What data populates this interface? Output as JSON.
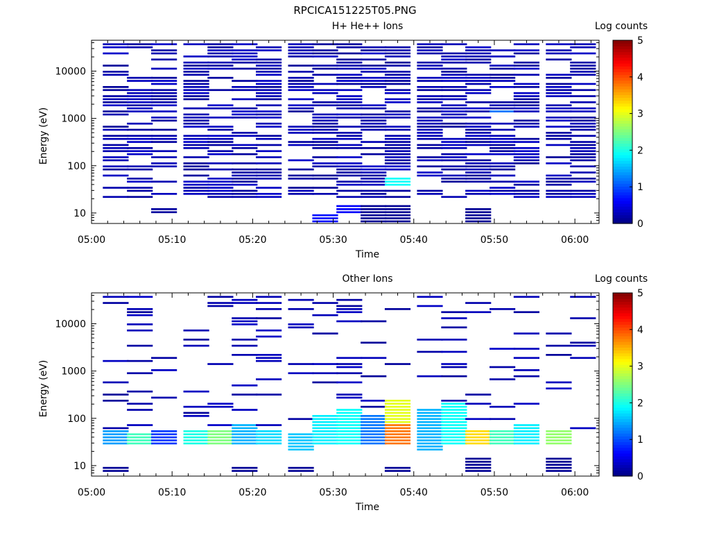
{
  "title": "RPCICA151225T05.PNG",
  "colors": {
    "frame": "#000000",
    "background": "#ffffff"
  },
  "colorscale": {
    "name": "jet",
    "min": 0,
    "max": 5,
    "ticks": [
      "0",
      "1",
      "2",
      "3",
      "4",
      "5"
    ],
    "label": "Log counts"
  },
  "chart_data": [
    {
      "type": "heatmap",
      "title": "H+ He++ Ions",
      "xlabel": "Time",
      "ylabel": "Energy (eV)",
      "yscale": "log",
      "ylim": [
        6,
        45000
      ],
      "xlim": [
        "05:00",
        "06:03"
      ],
      "x_ticks": [
        "05:00",
        "05:10",
        "05:20",
        "05:30",
        "05:40",
        "05:50",
        "06:00"
      ],
      "y_ticks": [
        "10",
        "100",
        "1000",
        "10000"
      ],
      "colorbar_label": "Log counts",
      "time_bins": [
        "05:03",
        "05:06",
        "05:09",
        "05:13",
        "05:16",
        "05:19",
        "05:22",
        "05:26",
        "05:29",
        "05:32",
        "05:35",
        "05:38",
        "05:42",
        "05:45",
        "05:48",
        "05:51",
        "05:54",
        "05:58",
        "06:01"
      ],
      "noise_level": 0.12,
      "noise_fill_probability": 0.6,
      "noise_energy_range": [
        20,
        40000
      ],
      "features": [
        {
          "time": "05:09",
          "energy_range": [
            9,
            12
          ],
          "value": 0.15
        },
        {
          "time": "05:16",
          "energy_range": [
            25,
            55
          ],
          "value": 0.35
        },
        {
          "time": "05:35",
          "energy_range": [
            6,
            14
          ],
          "value": 0.1
        },
        {
          "time": "05:38",
          "energy_range": [
            6,
            14
          ],
          "value": 0.1
        },
        {
          "time": "05:39",
          "energy_range": [
            38,
            60
          ],
          "value": 1.9
        },
        {
          "time": "05:48",
          "energy_range": [
            6,
            13
          ],
          "value": 0.1
        },
        {
          "time": "05:51",
          "energy_range": [
            1200,
            1400
          ],
          "value": 1.2
        },
        {
          "time": "05:32",
          "energy_range": [
            10,
            14
          ],
          "value": 0.6
        },
        {
          "time": "05:29",
          "energy_range": [
            6,
            9
          ],
          "value": 0.7
        }
      ]
    },
    {
      "type": "heatmap",
      "title": "Other Ions",
      "xlabel": "Time",
      "ylabel": "Energy (eV)",
      "yscale": "log",
      "ylim": [
        6,
        45000
      ],
      "xlim": [
        "05:00",
        "06:03"
      ],
      "x_ticks": [
        "05:00",
        "05:10",
        "05:20",
        "05:30",
        "05:40",
        "05:50",
        "06:00"
      ],
      "y_ticks": [
        "10",
        "100",
        "1000",
        "10000"
      ],
      "colorbar_label": "Log counts",
      "time_bins": [
        "05:03",
        "05:06",
        "05:09",
        "05:13",
        "05:16",
        "05:19",
        "05:22",
        "05:26",
        "05:29",
        "05:32",
        "05:35",
        "05:38",
        "05:42",
        "05:45",
        "05:48",
        "05:51",
        "05:54",
        "05:58",
        "06:01"
      ],
      "noise_level": 0.12,
      "noise_fill_probability": 0.18,
      "noise_energy_range": [
        60,
        40000
      ],
      "features": [
        {
          "time": "05:03",
          "energy_range": [
            25,
            60
          ],
          "value": 1.4
        },
        {
          "time": "05:06",
          "energy_range": [
            28,
            45
          ],
          "value": 2.2
        },
        {
          "time": "05:09",
          "energy_range": [
            25,
            60
          ],
          "value": 0.9
        },
        {
          "time": "05:13",
          "energy_range": [
            25,
            60
          ],
          "value": 2.0
        },
        {
          "time": "05:16",
          "energy_range": [
            28,
            55
          ],
          "value": 2.5
        },
        {
          "time": "05:19",
          "energy_range": [
            25,
            70
          ],
          "value": 1.5
        },
        {
          "time": "05:22",
          "energy_range": [
            25,
            60
          ],
          "value": 1.7
        },
        {
          "time": "05:26",
          "energy_range": [
            20,
            50
          ],
          "value": 1.6
        },
        {
          "time": "05:29",
          "energy_range": [
            28,
            120
          ],
          "value": 1.8
        },
        {
          "time": "05:32",
          "energy_range": [
            25,
            150
          ],
          "value": 1.9
        },
        {
          "time": "05:35",
          "energy_range": [
            25,
            120
          ],
          "value": 1.2
        },
        {
          "time": "05:38",
          "energy_range": [
            28,
            80
          ],
          "value": 3.8
        },
        {
          "time": "05:39",
          "energy_range": [
            80,
            250
          ],
          "value": 3.0
        },
        {
          "time": "05:42",
          "energy_range": [
            20,
            160
          ],
          "value": 1.5
        },
        {
          "time": "05:45",
          "energy_range": [
            25,
            200
          ],
          "value": 1.9
        },
        {
          "time": "05:48",
          "energy_range": [
            28,
            55
          ],
          "value": 3.3
        },
        {
          "time": "05:51",
          "energy_range": [
            25,
            60
          ],
          "value": 2.2
        },
        {
          "time": "05:54",
          "energy_range": [
            25,
            70
          ],
          "value": 1.8
        },
        {
          "time": "05:58",
          "energy_range": [
            28,
            55
          ],
          "value": 2.6
        },
        {
          "time": "05:03",
          "energy_range": [
            7,
            10
          ],
          "value": 0.1
        },
        {
          "time": "05:19",
          "energy_range": [
            7,
            10
          ],
          "value": 0.1
        },
        {
          "time": "05:26",
          "energy_range": [
            7,
            10
          ],
          "value": 0.1
        },
        {
          "time": "05:38",
          "energy_range": [
            7,
            10
          ],
          "value": 0.1
        },
        {
          "time": "05:48",
          "energy_range": [
            7,
            14
          ],
          "value": 0.1
        },
        {
          "time": "05:58",
          "energy_range": [
            7,
            14
          ],
          "value": 0.1
        }
      ]
    }
  ]
}
